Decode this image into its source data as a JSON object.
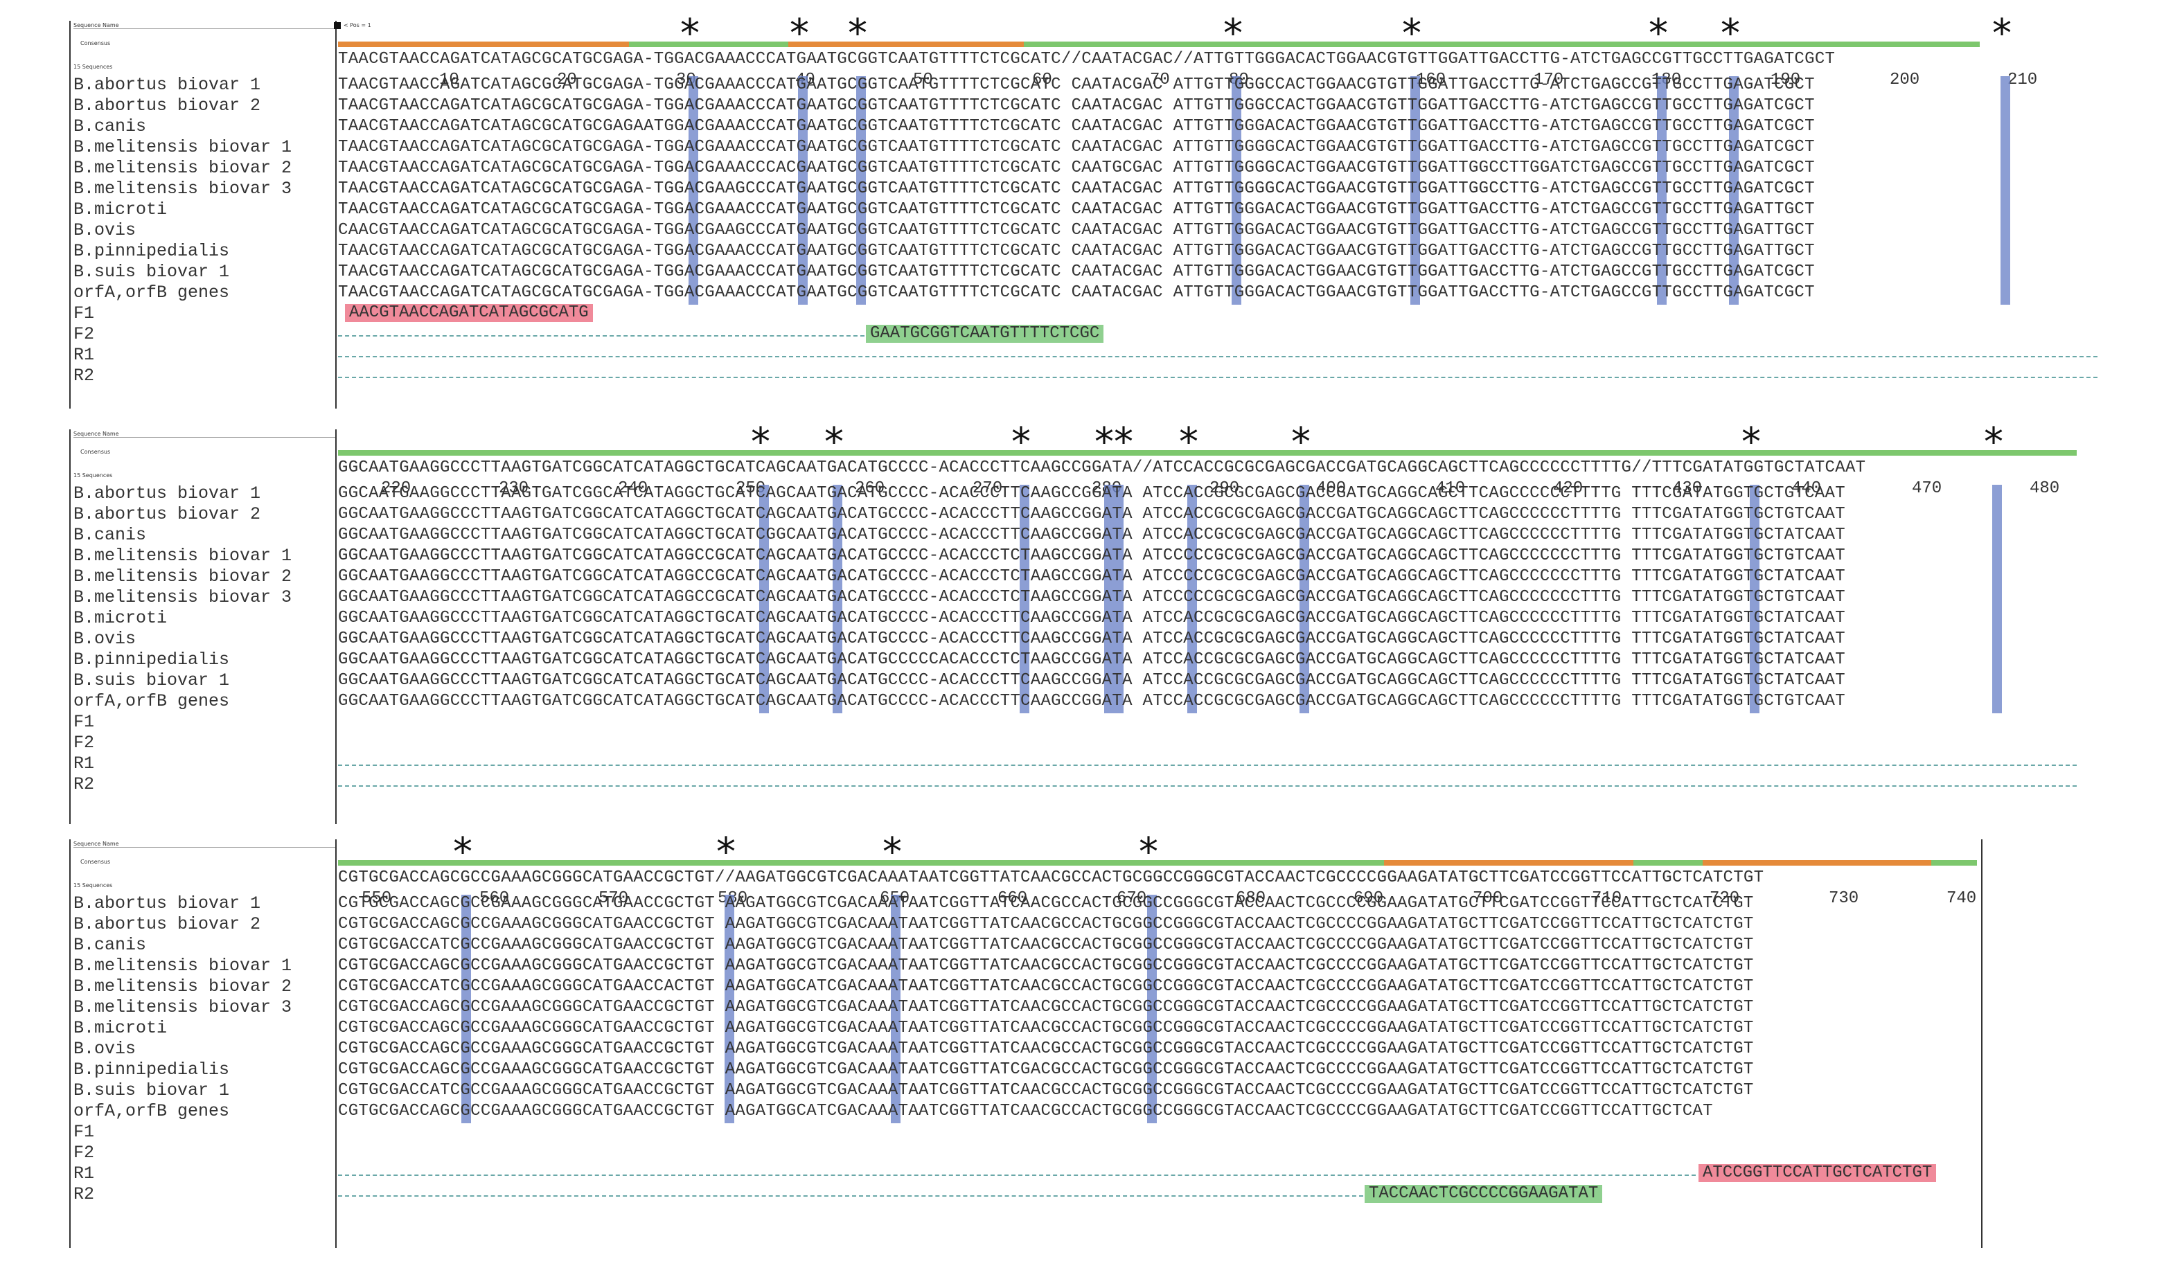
{
  "header": {
    "sequence_name_label": "Sequence Name",
    "consensus_label": "Consensus",
    "count_label": "15 Sequences",
    "pos_label": "< Pos = 1"
  },
  "names": [
    "B.abortus biovar 1",
    "B.abortus biovar 2",
    "B.canis",
    "B.melitensis biovar 1",
    "B.melitensis biovar 2",
    "B.melitensis biovar 3",
    "B.microti",
    "B.ovis",
    "B.pinnipedialis",
    "B.suis biovar 1",
    "orfA,orfB genes",
    "F1",
    "F2",
    "R1",
    "R2"
  ],
  "block1": {
    "consensus": "TAACGTAACCAGATCATAGCGCATGCGAGA-TGGACGAAACCCATGAATGCGGTCAATGTTTTCTCGCATC//CAATACGAC//ATTGTTGGGACACTGGAACGTGTTGGATTGACCTTG-ATCTGAGCCGTTGCCTTGAGATCGCT",
    "ruler": [
      "10",
      "20",
      "30",
      "40",
      "50",
      "60",
      "70",
      "80",
      "160",
      "170",
      "180",
      "190",
      "200",
      "210"
    ],
    "rows": [
      "TAACGTAACCAGATCATAGCGCATGCGAGA-TGGACGAAACCCATGAATGCGGTCAATGTTTTCTCGCATC CAATACGAC ATTGTTGGGCCACTGGAACGTGTTGGATTGACCTTG-ATCTGAGCCGTTGCCTTGAGATCGCT",
      "TAACGTAACCAGATCATAGCGCATGCGAGA-TGGACGAAACCCATGAATGCGGTCAATGTTTTCTCGCATC CAATACGAC ATTGTTGGGCCACTGGAACGTGTTGGATTGACCTTG-ATCTGAGCCGTTGCCTTGAGATCGCT",
      "TAACGTAACCAGATCATAGCGCATGCGAGAATGGACGAAACCCATGAATGCGGTCAATGTTTTCTCGCATC CAATACGAC ATTGTTGGGACACTGGAACGTGTTGGATTGACCTTG-ATCTGAGCCGTTGCCTTGAGATCGCT",
      "TAACGTAACCAGATCATAGCGCATGCGAGA-TGGACGAAACCCATGAATGCGGTCAATGTTTTCTCGCATC CAATACGAC ATTGTTGGGGCACTGGAACGTGTTGGATTGACCTTG-ATCTGAGCCGTTGCCTTGAGATCGCT",
      "TAACGTAACCAGATCATAGCGCATGCGAGA-TGGACGAAACCCACGAATGCGGTCAATGTTTTCTCGCATC CAATGCGAC ATTGTTGGGGCACTGGAACGTGTTGGATTGGCCTTGGATCTGAGCCGTTGCCTTGAGATCGCT",
      "TAACGTAACCAGATCATAGCGCATGCGAGA-TGGACGAAGCCCATGAATGCGGTCAATGTTTTCTCGCATC CAATACGAC ATTGTTGGGGCACTGGAACGTGTTGGATTGGCCTTG-ATCTGAGCCGTTGCCTTGAGATCGCT",
      "TAACGTAACCAGATCATAGCGCATGCGAGA-TGGACGAAACCCATGAATGCGGTCAATGTTTTCTCGCATC CAATACGAC ATTGTTGGGACACTGGAACGTGTTGGATTGACCTTG-ATCTGAGCCGTTGCCTTGAGATTGCT",
      "CAACGTAACCAGATCATAGCGCATGCGAGA-TGGACGAAGCCCATGAATGCGGTCAATGTTTTCTCGCATC CAATACGAC ATTGTTGGGACACTGGAACGTGTTGGATTGACCTTG-ATCTGAGCCGTTGCCTTGAGATTGCT",
      "TAACGTAACCAGATCATAGCGCATGCGAGA-TGGACGAAACCCATGAATGCGGTCAATGTTTTCTCGCATC CAATACGAC ATTGTTGGGACACTGGAACGTGTTGGATTGACCTTG-ATCTGAGCCGTTGCCTTGAGATTGCT",
      "TAACGTAACCAGATCATAGCGCATGCGAGA-TGGACGAAACCCATGAATGCGGTCAATGTTTTCTCGCATC CAATACGAC ATTGTTGGGACACTGGAACGTGTTGGATTGACCTTG-ATCTGAGCCGTTGCCTTGAGATCGCT",
      "TAACGTAACCAGATCATAGCGCATGCGAGA-TGGACGAAACCCATGAATGCGGTCAATGTTTTCTCGCATC CAATACGAC ATTGTTGGGACACTGGAACGTGTTGGATTGACCTTG-ATCTGAGCCGTTGCCTTGAGATCGCT"
    ],
    "f1": "AACGTAACCAGATCATAGCGCATG",
    "f2": "GAATGCGGTCAATGTTTTCTCGC"
  },
  "block2": {
    "consensus": "GGCAATGAAGGCCCTTAAGTGATCGGCATCATAGGCTGCATCAGCAATGACATGCCCC-ACACCCTTCAAGCCGGATA//ATCCACCGCGCGAGCGACCGATGCAGGCAGCTTCAGCCCCCCTTTTG//TTTCGATATGGTGCTATCAAT",
    "ruler": [
      "220",
      "230",
      "240",
      "250",
      "260",
      "270",
      "280",
      "290",
      "400",
      "410",
      "420",
      "430",
      "440",
      "470",
      "480"
    ],
    "rows": [
      "GGCAATGAAGGCCCTTAAGTGATCGGCATCATAGGCTGCATCAGCAATGACATGCCCC-ACACCCTTCAAGCCGGATA ATCCACCGCGCGAGCGACCGATGCAGGCAGCTTCAGCCCCCCTTTTG TTTCGATATGGTGCTGTCAAT",
      "GGCAATGAAGGCCCTTAAGTGATCGGCATCATAGGCTGCATCAGCAATGACATGCCCC-ACACCCTTCAAGCCGGATA ATCCACCGCGCGAGCGACCGATGCAGGCAGCTTCAGCCCCCCTTTTG TTTCGATATGGTGCTGTCAAT",
      "GGCAATGAAGGCCCTTAAGTGATCGGCATCATAGGCTGCATCGGCAATGACATGCCCC-ACACCCTTCAAGCCGGATA ATCCACCGCGCGAGCGACCGATGCAGGCAGCTTCAGCCCCCCTTTTG TTTCGATATGGTGCTATCAAT",
      "GGCAATGAAGGCCCTTAAGTGATCGGCATCATAGGCCGCATCAGCAATGACATGCCCC-ACACCCTCTAAGCCGGATA ATCCCCCGCGCGAGCGACCGATGCAGGCAGCTTCAGCCCCCCCTTTG TTTCGATATGGTGCTGTCAAT",
      "GGCAATGAAGGCCCTTAAGTGATCGGCATCATAGGCCGCATCAGCAATGACATGCCCC-ACACCCTCTAAGCCGGATA ATCCCCCGCGCGAGCGACCGATGCAGGCAGCTTCAGCCCCCCCTTTG TTTCGATATGGTGCTATCAAT",
      "GGCAATGAAGGCCCTTAAGTGATCGGCATCATAGGCCGCATCAGCAATGACATGCCCC-ACACCCTCTAAGCCGGATA ATCCCCCGCGCGAGCGACCGATGCAGGCAGCTTCAGCCCCCCCTTTG TTTCGATATGGTGCTGTCAAT",
      "GGCAATGAAGGCCCTTAAGTGATCGGCATCATAGGCTGCATCAGCAATGACATGCCCC-ACACCCTTCAAGCCGGATA ATCCACCGCGCGAGCGACCGATGCAGGCAGCTTCAGCCCCCCTTTTG TTTCGATATGGTGCTATCAAT",
      "GGCAATGAAGGCCCTTAAGTGATCGGCATCATAGGCTGCATCAGCAATGACATGCCCC-ACACCCTTCAAGCCGGATA ATCCACCGCGCGAGCGACCGATGCAGGCAGCTTCAGCCCCCCTTTTG TTTCGATATGGTGCTATCAAT",
      "GGCAATGAAGGCCCTTAAGTGATCGGCATCATAGGCTGCATCAGCAATGACATGCCCCCACACCCTCTAAGCCGGATA ATCCACCGCGCGAGCGACCGATGCAGGCAGCTTCAGCCCCCCTTTTG TTTCGATATGGTGCTATCAAT",
      "GGCAATGAAGGCCCTTAAGTGATCGGCATCATAGGCTGCATCAGCAATGACATGCCCC-ACACCCTTCAAGCCGGATA ATCCACCGCGCGAGCGACCGATGCAGGCAGCTTCAGCCCCCCTTTTG TTTCGATATGGTGCTATCAAT",
      "GGCAATGAAGGCCCTTAAGTGATCGGCATCATAGGCTGCATCAGCAATGACATGCCCC-ACACCCTTCAAGCCGGATA ATCCACCGCGCGAGCGACCGATGCAGGCAGCTTCAGCCCCCCTTTTG TTTCGATATGGTGCTGTCAAT"
    ]
  },
  "block3": {
    "consensus": "CGTGCGACCAGCGCCGAAAGCGGGCATGAACCGCTGT//AAGATGGCGTCGACAAATAATCGGTTATCAACGCCACTGCGGCCGGGCGTACCAACTCGCCCCGGAAGATATGCTTCGATCCGGTTCCATTGCTCATCTGT",
    "ruler": [
      "550",
      "560",
      "570",
      "580",
      "650",
      "660",
      "670",
      "680",
      "690",
      "700",
      "710",
      "720",
      "730",
      "740"
    ],
    "rows": [
      "CGTGCGACCAGCGCCGAAAGCGGGCATGAACCGCTGT AAGATGGCGTCGACAAATAATCGGTTATCAACGCCACTGCGGCCGGGCGTACCAACTCGCCCCGGAAGATATGCTTCGATCCGGTTCCATTGCTCATCTGT",
      "CGTGCGACCAGCGCCGAAAGCGGGCATGAACCGCTGT AAGATGGCGTCGACAAATAATCGGTTATCAACGCCACTGCGGCCGGGCGTACCAACTCGCCCCGGAAGATATGCTTCGATCCGGTTCCATTGCTCATCTGT",
      "CGTGCGACCATCGCCGAAAGCGGGCATGAACCGCTGT AAGATGGCGTCGACAAATAATCGGTTATCAACGCCACTGCGGCCGGGCGTACCAACTCGCCCCGGAAGATATGCTTCGATCCGGTTCCATTGCTCATCTGT",
      "CGTGCGACCAGCGCCGAAAGCGGGCATGAACCGCTGT AAGATGGCGTCGACAAATAATCGGTTATCAACGCCACTGCGGCCGGGCGTACCAACTCGCCCCGGAAGATATGCTTCGATCCGGTTCCATTGCTCATCTGT",
      "CGTGCGACCATCGCCGAAAGCGGGCATGAACCACTGT AAGATGGCATCGACAAATAATCGGTTATCAACGCCACTGCGGCCGGGCGTACCAACTCGCCCCGGAAGATATGCTTCGATCCGGTTCCATTGCTCATCTGT",
      "CGTGCGACCAGCGCCGAAAGCGGGCATGAACCGCTGT AAGATGGCGTCGACAAATAATCGGTTATCAACGCCACTGCGGCCGGGCGTACCAACTCGCCCCGGAAGATATGCTTCGATCCGGTTCCATTGCTCATCTGT",
      "CGTGCGACCAGCGCCGAAAGCGGGCATGAACCGCTGT AAGATGGCGTCGACAAATAATCGGTTATCAACGCCACTGCGGCCGGGCGTACCAACTCGCCCCGGAAGATATGCTTCGATCCGGTTCCATTGCTCATCTGT",
      "CGTGCGACCAGCGCCGAAAGCGGGCATGAACCGCTGT AAGATGGCGTCGACAAATAATCGGTTATCAACGCCACTGCGGCCGGGCGTACCAACTCGCCCCGGAAGATATGCTTCGATCCGGTTCCATTGCTCATCTGT",
      "CGTGCGACCAGCGCCGAAAGCGGGCATGAACCGCTGT AAGATGGCGTCGACAAATAATCGGTTATCGACGCCACTGCGGCCGGGCGTACCAACTCGCCCCGGAAGATATGCTTCGATCCGGTTCCATTGCTCATCTGT",
      "CGTGCGACCATCGCCGAAAGCGGGCATGAACCGCTGT AAGATGGCGTCGACAAATAATCGGTTATCAACGCCACTGCGGCCGGGCGTACCAACTCGCCCCGGAAGATATGCTTCGATCCGGTTCCATTGCTCATCTGT",
      "CGTGCGACCAGCGCCGAAAGCGGGCATGAACCGCTGT AAGATGGCATCGACAAATAATCGGTTATCAACGCCACTGCGGCCGGGCGTACCAACTCGCCCCGGAAGATATGCTTCGATCCGGTTCCATTGCTCAT"
    ],
    "r1": "ATCCGGTTCCATTGCTCATCTGT",
    "r2": "TACCAACTCGCCCCGGAAGATAT"
  },
  "star": "*",
  "colors": {
    "highlight": "#6f86c9",
    "orange": "#e58a3a",
    "green": "#7dc76d",
    "f_primer": "#f08a9a",
    "r_primer": "#8fd08f"
  }
}
